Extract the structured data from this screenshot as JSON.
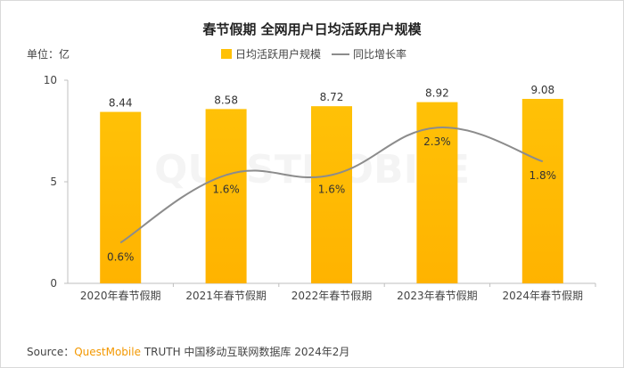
{
  "title": "春节假期 全网用户日均活跃用户规模",
  "unit_label": "单位：亿",
  "source": {
    "prefix": "Source：",
    "brand": "QuestMobile",
    "rest": "TRUTH 中国移动互联网数据库 2024年2月"
  },
  "watermark": "QUESTMOBILE",
  "colors": {
    "bar": "#FFC107",
    "bar_bottom": "#FFB300",
    "line": "#8c8c8c",
    "axis": "#bfbfbf"
  },
  "chart_data": {
    "type": "bar",
    "categories": [
      "2020年春节假期",
      "2021年春节假期",
      "2022年春节假期",
      "2023年春节假期",
      "2024年春节假期"
    ],
    "series": [
      {
        "name": "日均活跃用户规模",
        "type": "bar",
        "values": [
          8.44,
          8.58,
          8.72,
          8.92,
          9.08
        ],
        "labels": [
          "8.44",
          "8.58",
          "8.72",
          "8.92",
          "9.08"
        ]
      },
      {
        "name": "同比增长率",
        "type": "line",
        "values": [
          0.6,
          1.6,
          1.6,
          2.3,
          1.8
        ],
        "labels": [
          "0.6%",
          "1.6%",
          "1.6%",
          "2.3%",
          "1.8%"
        ]
      }
    ],
    "y_ticks": [
      "0",
      "5",
      "10"
    ],
    "ylim": [
      0,
      10
    ],
    "y2lim": [
      0,
      3
    ],
    "legend": "top-center",
    "grid": false
  }
}
